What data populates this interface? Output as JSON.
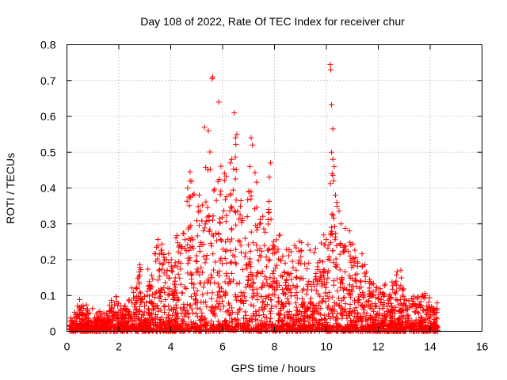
{
  "chart_data": {
    "type": "scatter",
    "title": "Day 108 of 2022, Rate Of TEC Index for receiver chur",
    "xlabel": "GPS time / hours",
    "ylabel": "ROTI / TECUs",
    "xlim": [
      0,
      16
    ],
    "ylim": [
      0,
      0.8
    ],
    "xticks": [
      0,
      2,
      4,
      6,
      8,
      10,
      12,
      14,
      16
    ],
    "yticks": [
      0,
      0.1,
      0.2,
      0.3,
      0.4,
      0.5,
      0.6,
      0.7,
      0.8
    ],
    "grid": true,
    "marker": "+",
    "color": "#ff0000",
    "data_extent_hours": [
      0.1,
      14.3
    ],
    "envelope": [
      [
        0.1,
        0.03
      ],
      [
        0.5,
        0.08
      ],
      [
        1.0,
        0.06
      ],
      [
        1.5,
        0.05
      ],
      [
        1.8,
        0.1
      ],
      [
        2.2,
        0.07
      ],
      [
        2.6,
        0.12
      ],
      [
        2.8,
        0.2
      ],
      [
        3.2,
        0.15
      ],
      [
        3.5,
        0.28
      ],
      [
        4.0,
        0.2
      ],
      [
        4.3,
        0.27
      ],
      [
        4.6,
        0.38
      ],
      [
        4.8,
        0.43
      ],
      [
        5.0,
        0.33
      ],
      [
        5.3,
        0.45
      ],
      [
        5.5,
        0.55
      ],
      [
        5.7,
        0.4
      ],
      [
        5.9,
        0.5
      ],
      [
        6.2,
        0.42
      ],
      [
        6.5,
        0.5
      ],
      [
        6.8,
        0.32
      ],
      [
        7.1,
        0.47
      ],
      [
        7.5,
        0.3
      ],
      [
        7.8,
        0.38
      ],
      [
        8.0,
        0.27
      ],
      [
        8.5,
        0.22
      ],
      [
        9.0,
        0.25
      ],
      [
        9.5,
        0.2
      ],
      [
        10.0,
        0.25
      ],
      [
        10.2,
        0.43
      ],
      [
        10.4,
        0.35
      ],
      [
        10.6,
        0.28
      ],
      [
        10.8,
        0.26
      ],
      [
        11.2,
        0.23
      ],
      [
        11.6,
        0.16
      ],
      [
        12.0,
        0.12
      ],
      [
        12.4,
        0.12
      ],
      [
        12.8,
        0.17
      ],
      [
        13.2,
        0.09
      ],
      [
        13.6,
        0.12
      ],
      [
        14.0,
        0.09
      ],
      [
        14.3,
        0.07
      ]
    ],
    "outliers": [
      [
        5.6,
        0.705
      ],
      [
        5.62,
        0.71
      ],
      [
        5.85,
        0.64
      ],
      [
        6.45,
        0.61
      ],
      [
        5.3,
        0.57
      ],
      [
        5.45,
        0.56
      ],
      [
        6.5,
        0.54
      ],
      [
        6.55,
        0.55
      ],
      [
        7.1,
        0.54
      ],
      [
        7.15,
        0.52
      ],
      [
        6.3,
        0.47
      ],
      [
        6.35,
        0.48
      ],
      [
        7.05,
        0.46
      ],
      [
        7.85,
        0.47
      ],
      [
        7.8,
        0.43
      ],
      [
        10.15,
        0.745
      ],
      [
        10.17,
        0.73
      ],
      [
        10.2,
        0.632
      ],
      [
        10.25,
        0.565
      ],
      [
        10.2,
        0.5
      ],
      [
        10.25,
        0.48
      ],
      [
        10.3,
        0.46
      ],
      [
        10.22,
        0.44
      ],
      [
        10.28,
        0.42
      ],
      [
        10.35,
        0.38
      ],
      [
        10.4,
        0.36
      ],
      [
        5.1,
        0.38
      ],
      [
        4.65,
        0.4
      ],
      [
        4.75,
        0.42
      ]
    ]
  }
}
